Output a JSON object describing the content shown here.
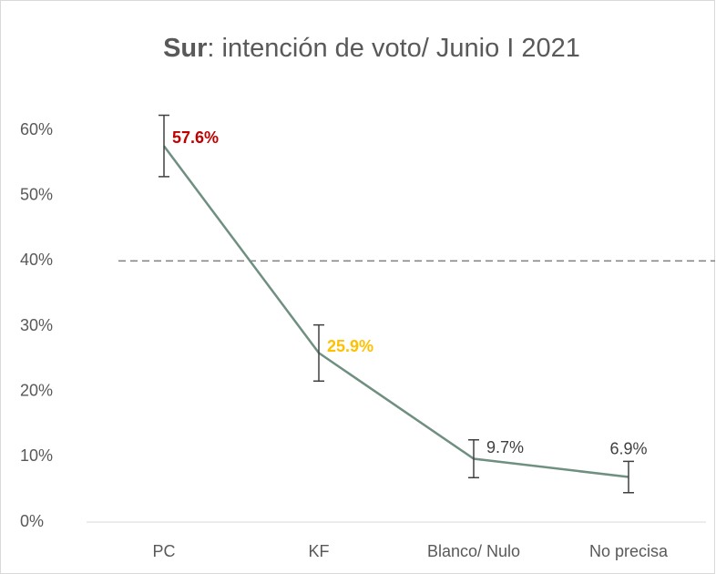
{
  "chart_data": {
    "type": "line",
    "title": [
      "Sur",
      ": intención de voto/ Junio I 2021"
    ],
    "categories": [
      "PC",
      "KF",
      "Blanco/ Nulo",
      "No precisa"
    ],
    "values": [
      57.6,
      25.9,
      9.7,
      6.9
    ],
    "value_labels": [
      "57.6%",
      "25.9%",
      "9.7%",
      "6.9%"
    ],
    "value_label_colors": [
      "#c00000",
      "#ffc000",
      "#404040",
      "#404040"
    ],
    "errors": [
      4.7,
      4.3,
      2.9,
      2.4
    ],
    "color": "#6f8f80",
    "reference_line": 40,
    "ylim": [
      0,
      60
    ],
    "yticks": [
      {
        "value": 0,
        "label": "0%"
      },
      {
        "value": 10,
        "label": "10%"
      },
      {
        "value": 20,
        "label": "20%"
      },
      {
        "value": 30,
        "label": "30%"
      },
      {
        "value": 40,
        "label": "40%"
      },
      {
        "value": 50,
        "label": "50%"
      },
      {
        "value": 60,
        "label": "60%"
      }
    ],
    "grid": false
  }
}
